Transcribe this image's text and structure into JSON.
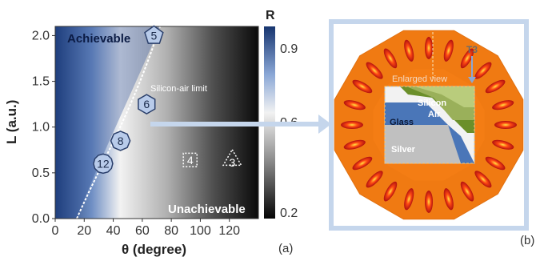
{
  "panel_a": {
    "label": "(a)",
    "xlabel": "θ (degree)",
    "ylabel": "L (a.u.)",
    "xticks": [
      "0",
      "20",
      "40",
      "60",
      "80",
      "100",
      "120"
    ],
    "yticks": [
      "0.0",
      "0.5",
      "1.0",
      "1.5",
      "2.0"
    ],
    "colorbar": {
      "title": "R",
      "ticks": [
        "0.9",
        "0.6",
        "0.2"
      ]
    },
    "texts": {
      "achievable": "Achievable",
      "unachievable": "Unachievable",
      "limit": "Silicon-air limit"
    },
    "markers": [
      {
        "label": "5",
        "shape": "pentagon",
        "theta": 68,
        "L": 2.0
      },
      {
        "label": "6",
        "shape": "hexagon",
        "theta": 63,
        "L": 1.25
      },
      {
        "label": "8",
        "shape": "octagon",
        "theta": 45,
        "L": 0.85
      },
      {
        "label": "12",
        "shape": "dodecagon",
        "theta": 33,
        "L": 0.6
      },
      {
        "label": "4",
        "shape": "square",
        "theta": 93,
        "L": 0.64
      },
      {
        "label": "3",
        "shape": "triangle",
        "theta": 122,
        "L": 0.64
      }
    ],
    "colors": {
      "achievable": "#1f3c88",
      "unachievable": "#111111",
      "limit": "#ffffff"
    }
  },
  "panel_b": {
    "label": "(b)",
    "label_t3": "T3",
    "enlarged_label": "Enlarged view",
    "layers": [
      "Silicon",
      "Air",
      "Glass",
      "Silver"
    ],
    "colors": {
      "frame": "#c5d6ec",
      "field": "#f07a12",
      "hot": "#d81a10",
      "glass": "#4a76b8",
      "silicon": "#9ab05a",
      "air": "#6b8f2a",
      "silver": "#c0c0c0"
    }
  }
}
